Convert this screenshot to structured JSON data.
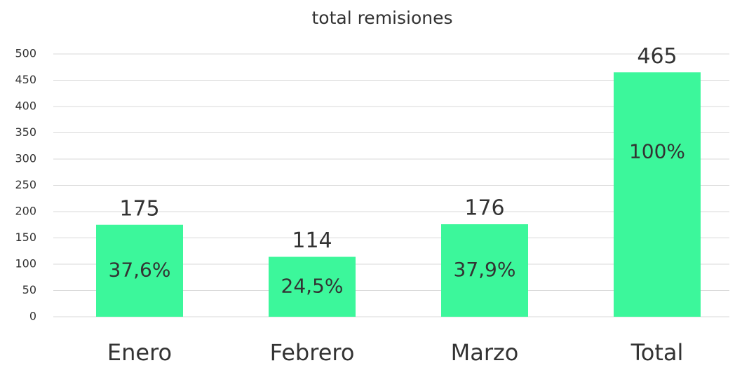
{
  "chart_data": {
    "type": "bar",
    "title": "total remisiones",
    "categories": [
      "Enero",
      "Febrero",
      "Marzo",
      "Total"
    ],
    "values": [
      175,
      114,
      176,
      465
    ],
    "percent_values": [
      37.6,
      24.5,
      37.9,
      100
    ],
    "percent_labels": [
      "37,6%",
      "24,5%",
      "37,9%",
      "100%"
    ],
    "color": "#3cf79b",
    "ylim": [
      0,
      500
    ],
    "yticks": [
      0,
      50,
      100,
      150,
      200,
      250,
      300,
      350,
      400,
      450,
      500
    ],
    "grid": true
  }
}
